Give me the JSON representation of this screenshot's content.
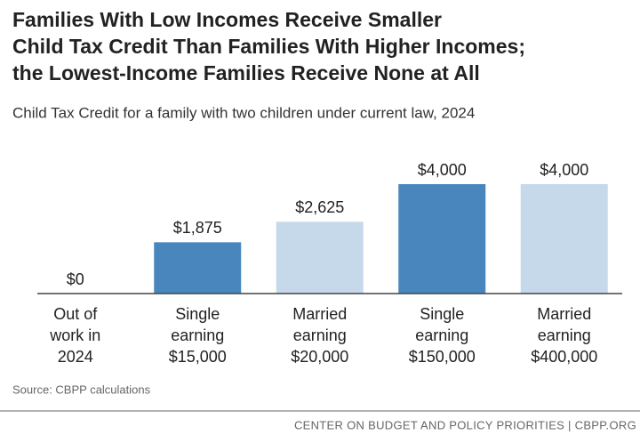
{
  "chart_data": {
    "type": "bar",
    "title": [
      "Families With Low Incomes Receive Smaller",
      "Child Tax Credit Than Families With Higher Incomes;",
      "the Lowest-Income Families Receive None at All"
    ],
    "subtitle": "Child Tax Credit for a family with two children under current law, 2024",
    "categories": [
      [
        "Out of",
        "work in",
        "2024"
      ],
      [
        "Single",
        "earning",
        "$15,000"
      ],
      [
        "Married",
        "earning",
        "$20,000"
      ],
      [
        "Single",
        "earning",
        "$150,000"
      ],
      [
        "Married",
        "earning",
        "$400,000"
      ]
    ],
    "values": [
      0,
      1875,
      2625,
      4000,
      4000
    ],
    "value_labels": [
      "$0",
      "$1,875",
      "$2,625",
      "$4,000",
      "$4,000"
    ],
    "colors": [
      "#4a86be",
      "#4a86be",
      "#c5d9eb",
      "#4a86be",
      "#c5d9eb"
    ],
    "source": "Source: CBPP calculations",
    "footer": "CENTER ON BUDGET AND POLICY PRIORITIES | CBPP.ORG"
  }
}
